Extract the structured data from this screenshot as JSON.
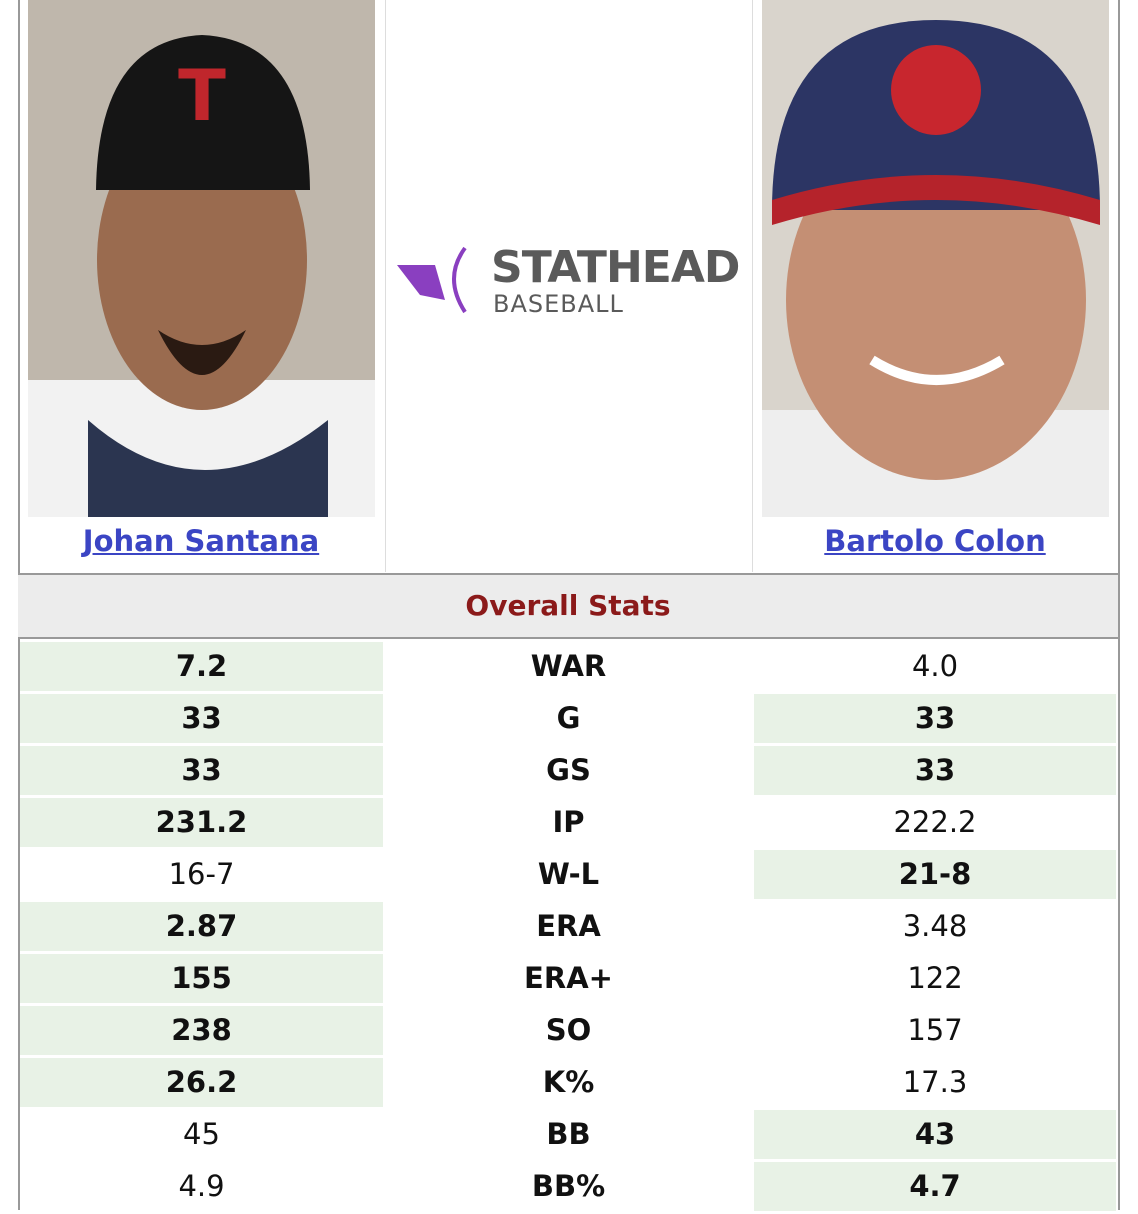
{
  "players": [
    {
      "name": "Johan Santana"
    },
    {
      "name": "Bartolo Colon"
    }
  ],
  "logo": {
    "title": "STATHEAD",
    "subtitle": "BASEBALL"
  },
  "table": {
    "section_title": "Overall Stats",
    "highlight_color": "#e8f2e6",
    "rows": [
      {
        "left": "7.2",
        "stat": "WAR",
        "right": "4.0",
        "leader": "left"
      },
      {
        "left": "33",
        "stat": "G",
        "right": "33",
        "leader": "both"
      },
      {
        "left": "33",
        "stat": "GS",
        "right": "33",
        "leader": "both"
      },
      {
        "left": "231.2",
        "stat": "IP",
        "right": "222.2",
        "leader": "left"
      },
      {
        "left": "16-7",
        "stat": "W-L",
        "right": "21-8",
        "leader": "right"
      },
      {
        "left": "2.87",
        "stat": "ERA",
        "right": "3.48",
        "leader": "left"
      },
      {
        "left": "155",
        "stat": "ERA+",
        "right": "122",
        "leader": "left"
      },
      {
        "left": "238",
        "stat": "SO",
        "right": "157",
        "leader": "left"
      },
      {
        "left": "26.2",
        "stat": "K%",
        "right": "17.3",
        "leader": "left"
      },
      {
        "left": "45",
        "stat": "BB",
        "right": "43",
        "leader": "right"
      },
      {
        "left": "4.9",
        "stat": "BB%",
        "right": "4.7",
        "leader": "right"
      }
    ]
  }
}
